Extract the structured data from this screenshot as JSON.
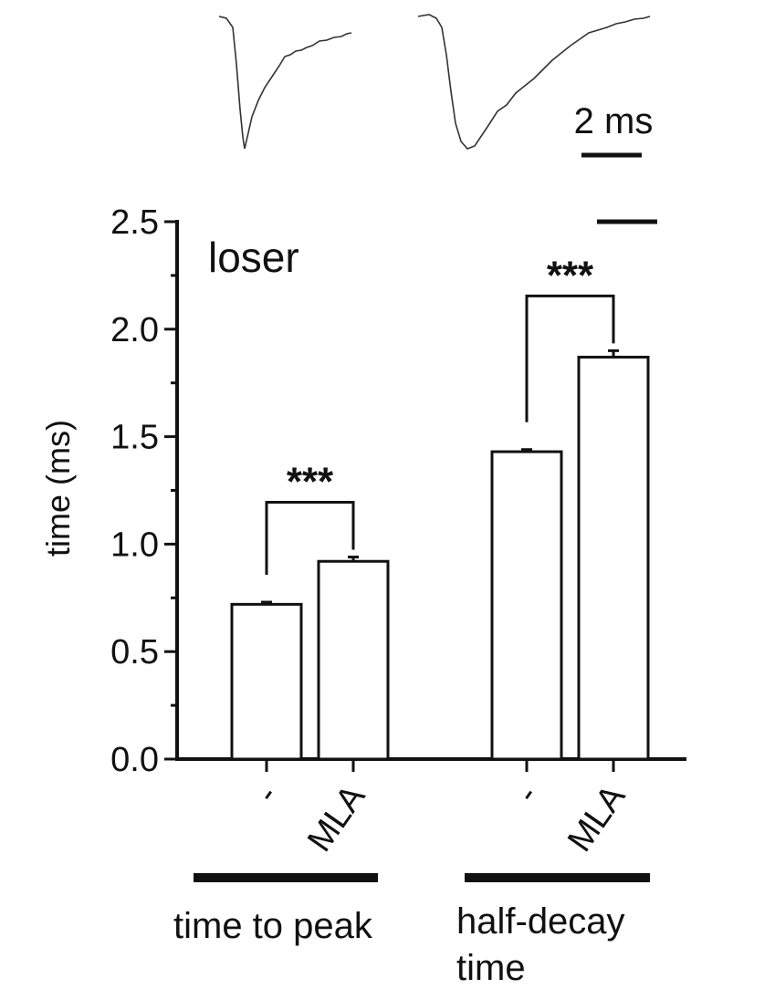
{
  "chart_data": {
    "type": "bar",
    "panel_label": "loser",
    "ylabel": "time (ms)",
    "ylim": [
      0,
      2.5
    ],
    "y_ticks": [
      "0.0",
      "0.5",
      "1.0",
      "1.5",
      "2.0",
      "2.5"
    ],
    "y_tick_values": [
      0,
      0.5,
      1.0,
      1.5,
      2.0,
      2.5
    ],
    "categories": [
      "-",
      "MLA",
      "-",
      "MLA"
    ],
    "groups": [
      {
        "label": "time to peak",
        "bars": [
          {
            "category": "-",
            "value": 0.72,
            "error": 0.01
          },
          {
            "category": "MLA",
            "value": 0.92,
            "error": 0.02
          }
        ],
        "significance": "***"
      },
      {
        "label_lines": [
          "half-decay",
          "time"
        ],
        "bars": [
          {
            "category": "-",
            "value": 1.43,
            "error": 0.01
          },
          {
            "category": "MLA",
            "value": 1.87,
            "error": 0.03
          }
        ],
        "significance": "***"
      }
    ],
    "grid": false,
    "legend": "none",
    "scale_bar_label": "2 ms",
    "bar_fill": "#ffffff",
    "stroke_color": "#111111"
  }
}
